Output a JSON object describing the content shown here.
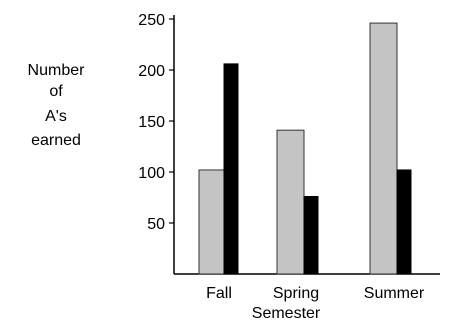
{
  "chart_data": {
    "type": "bar",
    "categories": [
      "Fall",
      "Spring",
      "Summer"
    ],
    "series": [
      {
        "values": [
          102,
          141,
          246
        ],
        "color": "#c4c4c4"
      },
      {
        "values": [
          206,
          76,
          102
        ],
        "color": "#000000"
      }
    ],
    "ylabel_lines": [
      "Number",
      "of",
      "A's",
      "earned"
    ],
    "xlabel": "Semester",
    "yticks": [
      50,
      100,
      150,
      200,
      250
    ],
    "ylim": [
      0,
      250
    ],
    "grid": false,
    "legend": "none"
  }
}
